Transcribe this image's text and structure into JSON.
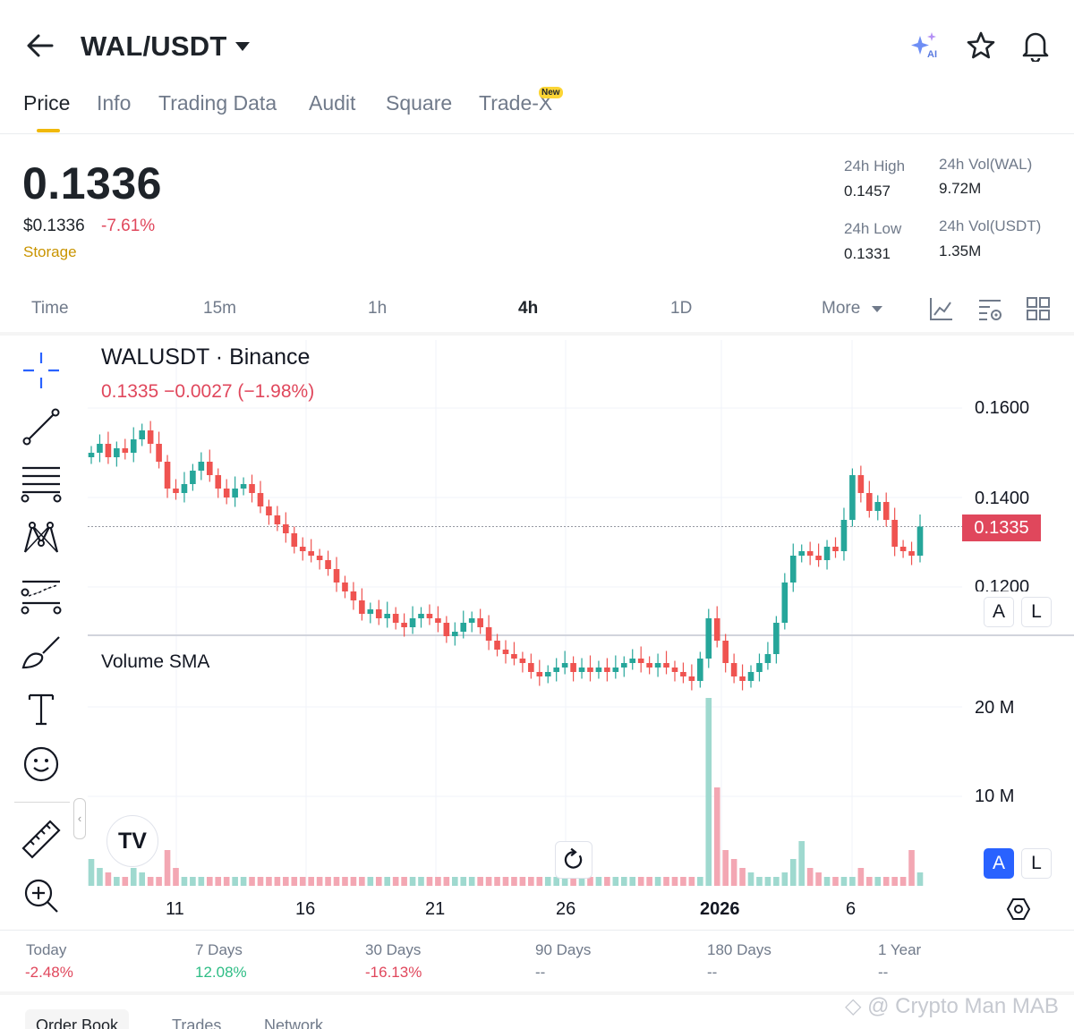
{
  "header": {
    "pair": "WAL/USDT",
    "icons": [
      "back-arrow-icon",
      "ai-sparkle-icon",
      "star-icon",
      "bell-icon"
    ]
  },
  "tabs": [
    {
      "label": "Price",
      "active": true
    },
    {
      "label": "Info"
    },
    {
      "label": "Trading Data"
    },
    {
      "label": "Audit"
    },
    {
      "label": "Square"
    },
    {
      "label": "Trade-X",
      "badge": "New"
    }
  ],
  "price": {
    "last": "0.1336",
    "usd": "$0.1336",
    "change_pct": "-7.61%",
    "tag": "Storage"
  },
  "stats": {
    "high_label": "24h High",
    "high": "0.1457",
    "low_label": "24h Low",
    "low": "0.1331",
    "vol_base_label": "24h Vol(WAL)",
    "vol_base": "9.72M",
    "vol_quote_label": "24h Vol(USDT)",
    "vol_quote": "1.35M"
  },
  "intervals": [
    "Time",
    "15m",
    "1h",
    "4h",
    "1D",
    "More"
  ],
  "interval_active": "4h",
  "chart": {
    "title": "WALUSDT · Binance",
    "ohlc": "0.1335 −0.0027 (−1.98%)",
    "volume_title": "Volume SMA",
    "price_axis": [
      "0.1600",
      "0.1400",
      "0.1200"
    ],
    "current_price_tag": "0.1335",
    "volume_axis": [
      "20 M",
      "10 M"
    ],
    "scale_buttons": [
      "A",
      "L"
    ],
    "date_labels": [
      "11",
      "16",
      "21",
      "26",
      "2026",
      "6"
    ],
    "logo": "TV",
    "up_color": "#26a69a",
    "down_color": "#ef5350"
  },
  "chart_data": {
    "type": "candlestick",
    "title": "WALUSDT · Binance",
    "interval": "4h",
    "close_series": [
      0.15,
      0.152,
      0.149,
      0.151,
      0.15,
      0.153,
      0.155,
      0.152,
      0.148,
      0.142,
      0.141,
      0.143,
      0.146,
      0.148,
      0.145,
      0.142,
      0.14,
      0.142,
      0.143,
      0.141,
      0.138,
      0.136,
      0.134,
      0.132,
      0.129,
      0.128,
      0.127,
      0.126,
      0.124,
      0.121,
      0.119,
      0.117,
      0.114,
      0.115,
      0.113,
      0.114,
      0.112,
      0.111,
      0.113,
      0.114,
      0.113,
      0.112,
      0.109,
      0.11,
      0.112,
      0.113,
      0.111,
      0.108,
      0.106,
      0.105,
      0.104,
      0.103,
      0.101,
      0.1,
      0.101,
      0.102,
      0.103,
      0.101,
      0.102,
      0.101,
      0.102,
      0.101,
      0.102,
      0.103,
      0.104,
      0.103,
      0.102,
      0.103,
      0.102,
      0.101,
      0.1,
      0.099,
      0.104,
      0.113,
      0.108,
      0.103,
      0.1,
      0.099,
      0.101,
      0.103,
      0.105,
      0.112,
      0.121,
      0.127,
      0.128,
      0.127,
      0.126,
      0.129,
      0.128,
      0.135,
      0.145,
      0.141,
      0.137,
      0.139,
      0.135,
      0.129,
      0.128,
      0.127,
      0.1335
    ],
    "volume_series_M": [
      3,
      2,
      1.5,
      1,
      1,
      2,
      1.5,
      1,
      1,
      4,
      2,
      1,
      1,
      1,
      1,
      1,
      1,
      1,
      1,
      1,
      1,
      1,
      1,
      1,
      1,
      1,
      1,
      1,
      1,
      1,
      1,
      1,
      1,
      1,
      1,
      1,
      1,
      1,
      1,
      1,
      1,
      1,
      1,
      1,
      1,
      1,
      1,
      1,
      1,
      1,
      1,
      1,
      1,
      1,
      1,
      1,
      1,
      1,
      1,
      1,
      1,
      1,
      1,
      1,
      1,
      1,
      1,
      1,
      1,
      1,
      1,
      1,
      1,
      21,
      11,
      4,
      3,
      2,
      1.5,
      1,
      1,
      1,
      1.5,
      3,
      5,
      2,
      1.5,
      1,
      1,
      1,
      1,
      2,
      1,
      1,
      1,
      1,
      1,
      4,
      1.5,
      1
    ],
    "ylim": [
      0.11,
      0.17
    ],
    "price_ticks": [
      0.12,
      0.14,
      0.16
    ],
    "volume_ticks_M": [
      10,
      20
    ],
    "x_tick_labels": [
      "11",
      "16",
      "21",
      "26",
      "2026",
      "6"
    ],
    "last_price": 0.1335
  },
  "performance": [
    {
      "label": "Today",
      "value": "-2.48%",
      "tone": "neg"
    },
    {
      "label": "7 Days",
      "value": "12.08%",
      "tone": "pos"
    },
    {
      "label": "30 Days",
      "value": "-16.13%",
      "tone": "neg"
    },
    {
      "label": "90 Days",
      "value": "--",
      "tone": "flat"
    },
    {
      "label": "180 Days",
      "value": "--",
      "tone": "flat"
    },
    {
      "label": "1 Year",
      "value": "--",
      "tone": "flat"
    }
  ],
  "bottom_tabs": [
    "Order Book",
    "Trades",
    "Network"
  ],
  "watermark": "Crypto Man MAB"
}
